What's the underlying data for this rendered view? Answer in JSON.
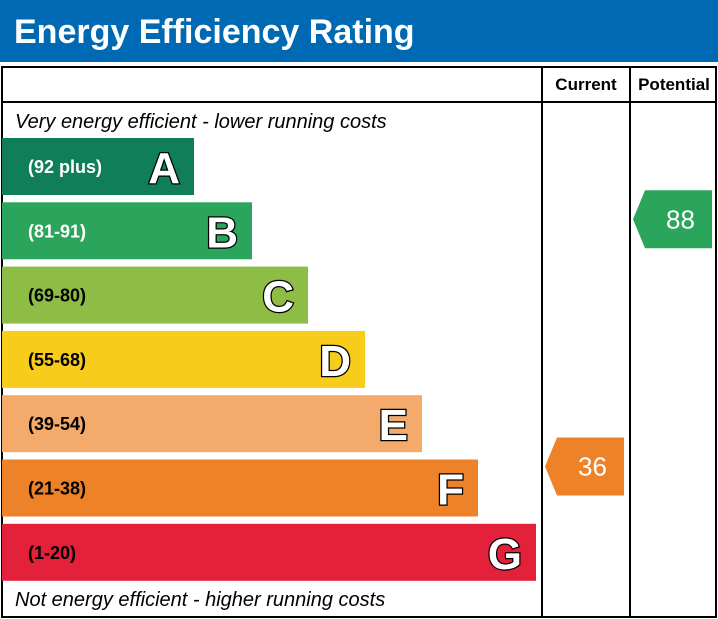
{
  "chart_data": {
    "type": "bar",
    "title": "Energy Efficiency Rating",
    "columns": [
      "Current",
      "Potential"
    ],
    "top_note": "Very energy efficient - lower running costs",
    "bottom_note": "Not energy efficient - higher running costs",
    "bands": [
      {
        "letter": "A",
        "range": "(92 plus)",
        "color": "#107e58",
        "text_color": "#ffffff"
      },
      {
        "letter": "B",
        "range": "(81-91)",
        "color": "#2ba55b",
        "text_color": "#ffffff"
      },
      {
        "letter": "C",
        "range": "(69-80)",
        "color": "#8dbd44",
        "text_color": "#000000"
      },
      {
        "letter": "D",
        "range": "(55-68)",
        "color": "#f7cc1a",
        "text_color": "#000000"
      },
      {
        "letter": "E",
        "range": "(39-54)",
        "color": "#f3aa6b",
        "text_color": "#000000"
      },
      {
        "letter": "F",
        "range": "(21-38)",
        "color": "#ee8228",
        "text_color": "#000000"
      },
      {
        "letter": "G",
        "range": "(1-20)",
        "color": "#e4213b",
        "text_color": "#000000"
      }
    ],
    "current": {
      "value": 36,
      "band": "F",
      "color": "#ee8228"
    },
    "potential": {
      "value": 88,
      "band": "B",
      "color": "#2ba55b"
    },
    "header_color": "#0069b4"
  }
}
